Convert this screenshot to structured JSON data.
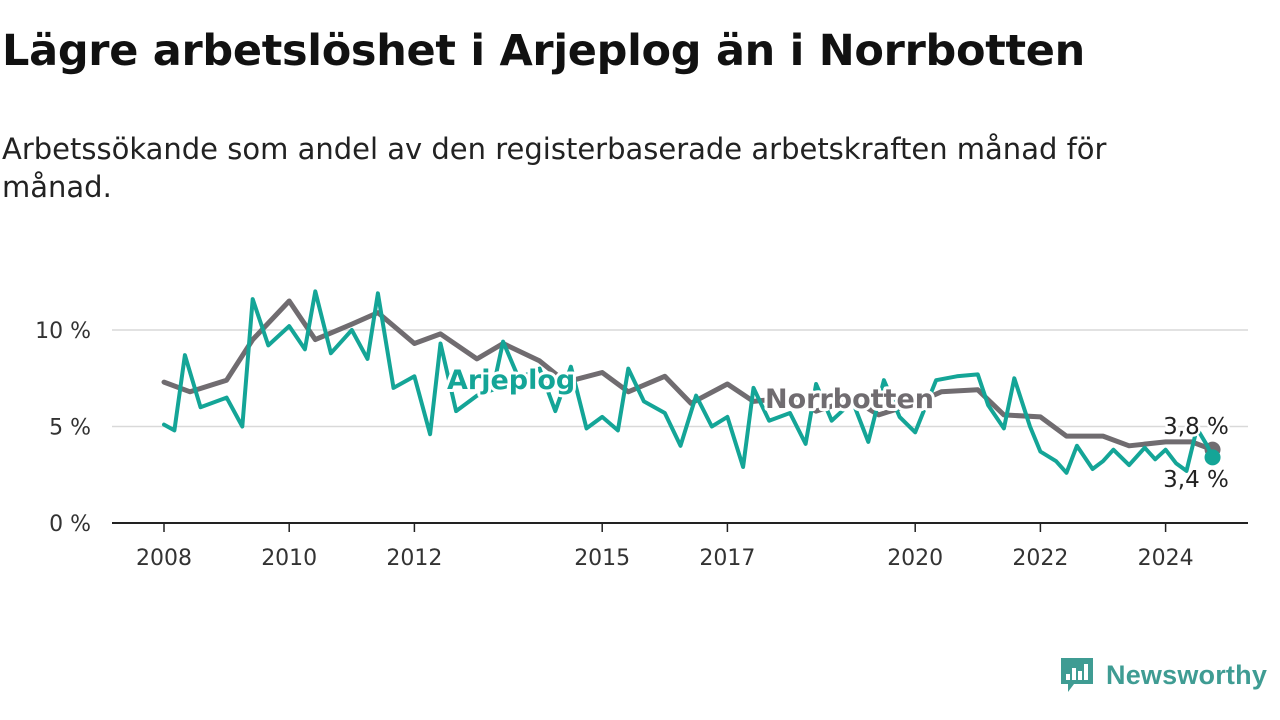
{
  "header": {
    "title": "Lägre arbetslöshet i Arjeplog än i Norrbotten",
    "subtitle": "Arbetssökande som andel av den registerbaserade arbetskraften månad för månad."
  },
  "brand": {
    "name": "Newsworthy",
    "icon": "newsworthy-chart-icon"
  },
  "colors": {
    "arjeplog": "#14a597",
    "norrbotten": "#706c70",
    "grid": "#d9d9d9",
    "axis": "#222222"
  },
  "chart_data": {
    "type": "line",
    "title": "Lägre arbetslöshet i Arjeplog än i Norrbotten",
    "subtitle": "Arbetssökande som andel av den registerbaserade arbetskraften månad för månad.",
    "xlabel": "",
    "ylabel": "",
    "x_ticks": [
      "2008",
      "2010",
      "2012",
      "2015",
      "2017",
      "2020",
      "2022",
      "2024"
    ],
    "y_ticks": [
      "0 %",
      "5 %",
      "10 %"
    ],
    "y_tick_values": [
      0,
      5,
      10
    ],
    "ylim": [
      0,
      13
    ],
    "xlim": [
      "2008-01",
      "2025-06"
    ],
    "grid": true,
    "legend": "inline labels on lines",
    "series": [
      {
        "name": "Norrbotten",
        "end_label": "3,8 %",
        "points": [
          [
            "2008-01",
            7.3
          ],
          [
            "2008-06",
            6.8
          ],
          [
            "2009-01",
            7.4
          ],
          [
            "2009-06",
            9.5
          ],
          [
            "2010-01",
            11.5
          ],
          [
            "2010-06",
            9.5
          ],
          [
            "2011-01",
            10.3
          ],
          [
            "2011-06",
            10.9
          ],
          [
            "2012-01",
            9.3
          ],
          [
            "2012-06",
            9.8
          ],
          [
            "2013-01",
            8.5
          ],
          [
            "2013-06",
            9.3
          ],
          [
            "2014-01",
            8.4
          ],
          [
            "2014-06",
            7.3
          ],
          [
            "2015-01",
            7.8
          ],
          [
            "2015-06",
            6.8
          ],
          [
            "2016-01",
            7.6
          ],
          [
            "2016-06",
            6.2
          ],
          [
            "2017-01",
            7.2
          ],
          [
            "2017-06",
            6.3
          ],
          [
            "2018-01",
            6.5
          ],
          [
            "2018-06",
            5.8
          ],
          [
            "2019-01",
            6.4
          ],
          [
            "2019-06",
            5.6
          ],
          [
            "2020-01",
            6.2
          ],
          [
            "2020-06",
            6.8
          ],
          [
            "2021-01",
            6.9
          ],
          [
            "2021-06",
            5.6
          ],
          [
            "2022-01",
            5.5
          ],
          [
            "2022-06",
            4.5
          ],
          [
            "2023-01",
            4.5
          ],
          [
            "2023-06",
            4.0
          ],
          [
            "2024-01",
            4.2
          ],
          [
            "2024-06",
            4.2
          ],
          [
            "2024-10",
            3.8
          ]
        ]
      },
      {
        "name": "Arjeplog",
        "end_label": "3,4 %",
        "points": [
          [
            "2008-01",
            5.1
          ],
          [
            "2008-03",
            4.8
          ],
          [
            "2008-05",
            8.7
          ],
          [
            "2008-08",
            6.0
          ],
          [
            "2009-01",
            6.5
          ],
          [
            "2009-04",
            5.0
          ],
          [
            "2009-06",
            11.6
          ],
          [
            "2009-09",
            9.2
          ],
          [
            "2010-01",
            10.2
          ],
          [
            "2010-04",
            9.0
          ],
          [
            "2010-06",
            12.0
          ],
          [
            "2010-09",
            8.8
          ],
          [
            "2011-01",
            10.0
          ],
          [
            "2011-04",
            8.5
          ],
          [
            "2011-06",
            11.9
          ],
          [
            "2011-09",
            7.0
          ],
          [
            "2012-01",
            7.6
          ],
          [
            "2012-04",
            4.6
          ],
          [
            "2012-06",
            9.3
          ],
          [
            "2012-09",
            5.8
          ],
          [
            "2013-01",
            6.6
          ],
          [
            "2013-04",
            6.9
          ],
          [
            "2013-06",
            9.4
          ],
          [
            "2013-09",
            7.5
          ],
          [
            "2014-01",
            8.0
          ],
          [
            "2014-04",
            5.8
          ],
          [
            "2014-07",
            8.1
          ],
          [
            "2014-10",
            4.9
          ],
          [
            "2015-01",
            5.5
          ],
          [
            "2015-04",
            4.8
          ],
          [
            "2015-06",
            8.0
          ],
          [
            "2015-09",
            6.3
          ],
          [
            "2016-01",
            5.7
          ],
          [
            "2016-04",
            4.0
          ],
          [
            "2016-07",
            6.6
          ],
          [
            "2016-10",
            5.0
          ],
          [
            "2017-01",
            5.5
          ],
          [
            "2017-04",
            2.9
          ],
          [
            "2017-06",
            7.0
          ],
          [
            "2017-09",
            5.3
          ],
          [
            "2018-01",
            5.7
          ],
          [
            "2018-04",
            4.1
          ],
          [
            "2018-06",
            7.2
          ],
          [
            "2018-09",
            5.3
          ],
          [
            "2019-01",
            6.3
          ],
          [
            "2019-04",
            4.2
          ],
          [
            "2019-07",
            7.4
          ],
          [
            "2019-10",
            5.5
          ],
          [
            "2020-01",
            4.7
          ],
          [
            "2020-05",
            7.4
          ],
          [
            "2020-09",
            7.6
          ],
          [
            "2021-01",
            7.7
          ],
          [
            "2021-03",
            6.1
          ],
          [
            "2021-06",
            4.9
          ],
          [
            "2021-08",
            7.5
          ],
          [
            "2021-11",
            5.0
          ],
          [
            "2022-01",
            3.7
          ],
          [
            "2022-04",
            3.2
          ],
          [
            "2022-06",
            2.6
          ],
          [
            "2022-08",
            4.0
          ],
          [
            "2022-11",
            2.8
          ],
          [
            "2023-01",
            3.2
          ],
          [
            "2023-03",
            3.8
          ],
          [
            "2023-06",
            3.0
          ],
          [
            "2023-09",
            3.9
          ],
          [
            "2023-11",
            3.3
          ],
          [
            "2024-01",
            3.8
          ],
          [
            "2024-03",
            3.1
          ],
          [
            "2024-05",
            2.7
          ],
          [
            "2024-07",
            4.9
          ],
          [
            "2024-09",
            4.0
          ],
          [
            "2024-10",
            3.4
          ]
        ]
      }
    ]
  }
}
